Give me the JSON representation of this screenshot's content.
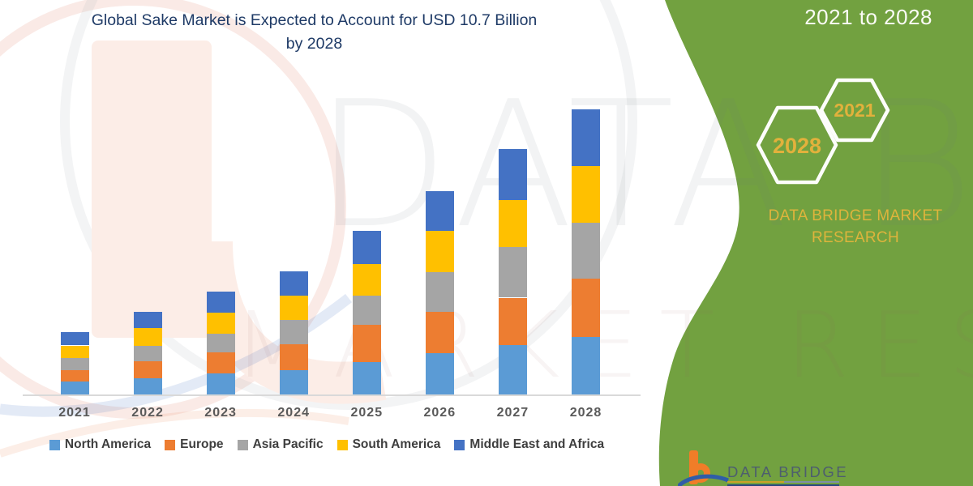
{
  "title": {
    "line1": "Global Sake Market is Expected to Account for USD 10.7 Billion",
    "line2": "by 2028"
  },
  "chart_data": {
    "type": "bar",
    "stacked": true,
    "title": "Global Sake Market is Expected to Account for USD 10.7 Billion by 2028",
    "xlabel": "",
    "ylabel": "",
    "unit": "USD Billion (estimated from bar heights; y-axis not shown)",
    "grid": false,
    "y_axis_visible": false,
    "legend_position": "bottom",
    "categories": [
      "2021",
      "2022",
      "2023",
      "2024",
      "2025",
      "2026",
      "2027",
      "2028"
    ],
    "series": [
      {
        "name": "North America",
        "color": "#5B9BD5",
        "values": [
          0.49,
          0.62,
          0.79,
          0.92,
          1.22,
          1.55,
          1.85,
          2.16
        ]
      },
      {
        "name": "Europe",
        "color": "#ED7D31",
        "values": [
          0.43,
          0.63,
          0.79,
          0.96,
          1.39,
          1.55,
          1.78,
          2.19
        ]
      },
      {
        "name": "Asia Pacific",
        "color": "#A5A5A5",
        "values": [
          0.46,
          0.57,
          0.71,
          0.91,
          1.09,
          1.5,
          1.91,
          2.1
        ]
      },
      {
        "name": "South America",
        "color": "#FFC000",
        "values": [
          0.46,
          0.66,
          0.79,
          0.91,
          1.19,
          1.54,
          1.75,
          2.13
        ]
      },
      {
        "name": "Middle East and Africa",
        "color": "#4472C4",
        "values": [
          0.49,
          0.61,
          0.79,
          0.91,
          1.24,
          1.5,
          1.93,
          2.13
        ]
      }
    ],
    "totals": [
      2.33,
      3.09,
      3.87,
      4.61,
      6.13,
      7.64,
      9.22,
      10.71
    ]
  },
  "side_panel": {
    "period_text": "2021 to 2028",
    "hexagon_back_label": "2028",
    "hexagon_front_label": "2021",
    "caption_line1": "DATA BRIDGE MARKET",
    "caption_line2": "RESEARCH"
  },
  "footer_logo": {
    "brand": "DATA BRIDGE"
  },
  "watermarks": {
    "row1": "DATA BRIDGE",
    "row2": "MARKET RESEARCH"
  },
  "colors": {
    "panel_green": "#72A140",
    "title_navy": "#1E3A66",
    "gold_text": "#DEB43C",
    "hex_year_gold": "#E2B13C",
    "axis_label_gray": "#595959",
    "legend_text": "#3E3E3E",
    "axis_line": "#D9D9D9",
    "logo_orange": "#F07D28",
    "logo_blue": "#2F5DA8",
    "footer_text": "#4D5E6E"
  }
}
